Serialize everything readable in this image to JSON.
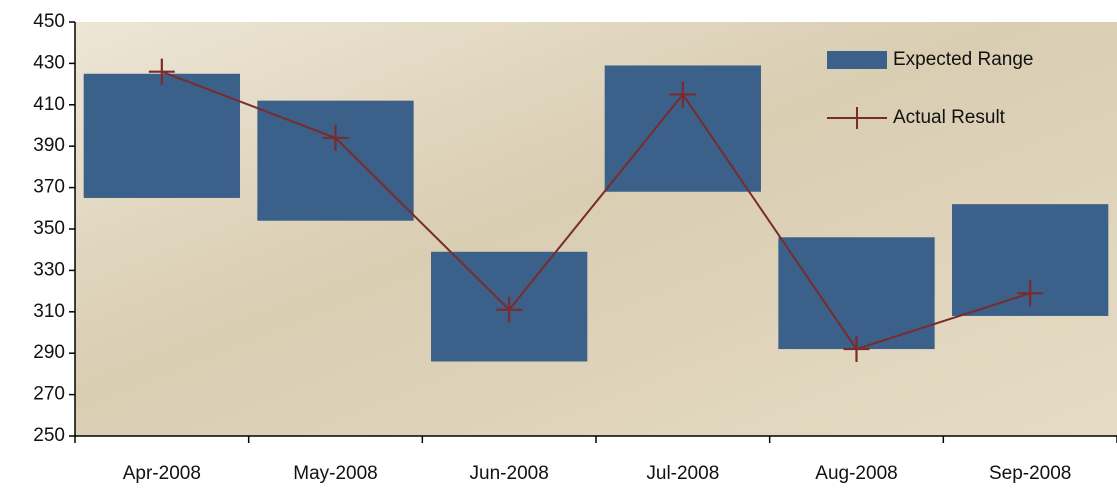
{
  "chart_data": {
    "type": "range-bar",
    "categories": [
      "Apr-2008",
      "May-2008",
      "Jun-2008",
      "Jul-2008",
      "Aug-2008",
      "Sep-2008"
    ],
    "series": [
      {
        "name": "Expected Range",
        "type": "range-bar",
        "color": "#3b6089",
        "low": [
          365,
          354,
          286,
          368,
          292,
          308
        ],
        "high": [
          425,
          412,
          339,
          429,
          346,
          362
        ]
      },
      {
        "name": "Actual Result",
        "type": "line",
        "color": "#7a2b2b",
        "values": [
          426,
          394,
          311,
          415,
          292,
          319
        ]
      }
    ],
    "ylim": [
      250,
      450
    ],
    "yticks": [
      250,
      270,
      290,
      310,
      330,
      350,
      370,
      390,
      410,
      430,
      450
    ],
    "legend_position": "top-right"
  }
}
